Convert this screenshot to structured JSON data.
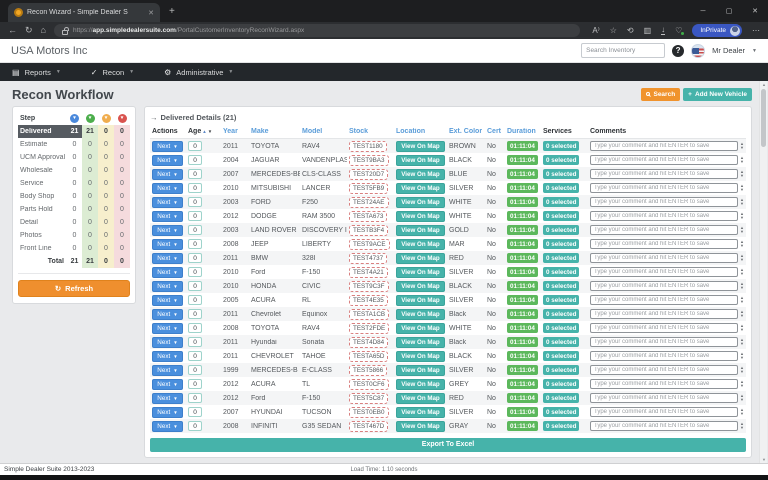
{
  "browser": {
    "tab_title": "Recon Wizard - Simple Dealer S",
    "url_prefix": "https://",
    "url_host": "app.simpledealersuite.com",
    "url_path": "/PortalCustomerInventoryReconWizard.aspx",
    "inprivate_label": "InPrivate"
  },
  "header": {
    "company": "USA Motors Inc",
    "search_placeholder": "Search Inventory",
    "user": "Mr Dealer"
  },
  "nav": {
    "items": [
      {
        "label": "Reports"
      },
      {
        "label": "Recon"
      },
      {
        "label": "Administrative"
      }
    ]
  },
  "page": {
    "title": "Recon Workflow",
    "search_button": "Search",
    "add_vehicle_button": "Add New Vehicle"
  },
  "steps": {
    "header": "Step",
    "status_colors": [
      "#4a89dc",
      "#4cae4c",
      "#f0ad4e",
      "#d9534f"
    ],
    "rows": [
      {
        "label": "Delivered",
        "values": [
          21,
          21,
          0,
          0
        ],
        "selected": true
      },
      {
        "label": "Estimate",
        "values": [
          0,
          0,
          0,
          0
        ],
        "selected": false
      },
      {
        "label": "UCM Approval",
        "values": [
          0,
          0,
          0,
          0
        ],
        "selected": false
      },
      {
        "label": "Wholesale",
        "values": [
          0,
          0,
          0,
          0
        ],
        "selected": false
      },
      {
        "label": "Service",
        "values": [
          0,
          0,
          0,
          0
        ],
        "selected": false
      },
      {
        "label": "Body Shop",
        "values": [
          0,
          0,
          0,
          0
        ],
        "selected": false
      },
      {
        "label": "Parts Hold",
        "values": [
          0,
          0,
          0,
          0
        ],
        "selected": false
      },
      {
        "label": "Detail",
        "values": [
          0,
          0,
          0,
          0
        ],
        "selected": false
      },
      {
        "label": "Photos",
        "values": [
          0,
          0,
          0,
          0
        ],
        "selected": false
      },
      {
        "label": "Front Line",
        "values": [
          0,
          0,
          0,
          0
        ],
        "selected": false
      }
    ],
    "total_label": "Total",
    "total_values": [
      21,
      21,
      0,
      0
    ],
    "refresh_button": "Refresh"
  },
  "details": {
    "title": "Delivered Details (21)",
    "columns": [
      {
        "label": "Actions",
        "link": false,
        "sort": false
      },
      {
        "label": "Age",
        "link": false,
        "sort": true
      },
      {
        "label": "Year",
        "link": true,
        "sort": false
      },
      {
        "label": "Make",
        "link": true,
        "sort": false
      },
      {
        "label": "Model",
        "link": true,
        "sort": false
      },
      {
        "label": "Stock",
        "link": true,
        "sort": false
      },
      {
        "label": "Location",
        "link": true,
        "sort": false
      },
      {
        "label": "Ext. Color",
        "link": true,
        "sort": false
      },
      {
        "label": "Cert",
        "link": true,
        "sort": false
      },
      {
        "label": "Duration",
        "link": true,
        "sort": false
      },
      {
        "label": "Services",
        "link": false,
        "sort": false
      },
      {
        "label": "Comments",
        "link": false,
        "sort": false
      }
    ],
    "next_label": "Next",
    "view_on_map_label": "View On Map",
    "comment_placeholder": "Type your comment and hit ENTER to save",
    "export_button": "Export To Excel",
    "rows": [
      {
        "age": "0",
        "year": "2011",
        "make": "TOYOTA",
        "model": "RAV4",
        "stock": "TEST1180",
        "ext_color": "BROWN",
        "cert": "No",
        "duration": "01:11:04",
        "services": "0 selected"
      },
      {
        "age": "0",
        "year": "2004",
        "make": "JAGUAR",
        "model": "VANDENPLAS",
        "stock": "TEST9BA3",
        "ext_color": "BLACK",
        "cert": "No",
        "duration": "01:11:04",
        "services": "0 selected"
      },
      {
        "age": "0",
        "year": "2007",
        "make": "MERCEDES-BENZ",
        "model": "CLS-CLASS",
        "stock": "TEST20D7",
        "ext_color": "BLUE",
        "cert": "No",
        "duration": "01:11:04",
        "services": "0 selected"
      },
      {
        "age": "0",
        "year": "2010",
        "make": "MITSUBISHI",
        "model": "LANCER",
        "stock": "TEST5FB9",
        "ext_color": "SILVER",
        "cert": "No",
        "duration": "01:11:04",
        "services": "0 selected"
      },
      {
        "age": "0",
        "year": "2003",
        "make": "FORD",
        "model": "F250",
        "stock": "TEST24AE",
        "ext_color": "WHITE",
        "cert": "No",
        "duration": "01:11:04",
        "services": "0 selected"
      },
      {
        "age": "0",
        "year": "2012",
        "make": "DODGE",
        "model": "RAM 3500",
        "stock": "TESTA673",
        "ext_color": "WHITE",
        "cert": "No",
        "duration": "01:11:04",
        "services": "0 selected"
      },
      {
        "age": "0",
        "year": "2003",
        "make": "LAND ROVER",
        "model": "DISCOVERY II",
        "stock": "TESTB3F4",
        "ext_color": "GOLD",
        "cert": "No",
        "duration": "01:11:04",
        "services": "0 selected"
      },
      {
        "age": "0",
        "year": "2008",
        "make": "JEEP",
        "model": "LIBERTY",
        "stock": "TEST9ACE",
        "ext_color": "MAR",
        "cert": "No",
        "duration": "01:11:04",
        "services": "0 selected"
      },
      {
        "age": "0",
        "year": "2011",
        "make": "BMW",
        "model": "328I",
        "stock": "TEST4737",
        "ext_color": "RED",
        "cert": "No",
        "duration": "01:11:04",
        "services": "0 selected"
      },
      {
        "age": "0",
        "year": "2010",
        "make": "Ford",
        "model": "F-150",
        "stock": "TEST4A21",
        "ext_color": "SILVER",
        "cert": "No",
        "duration": "01:11:04",
        "services": "0 selected"
      },
      {
        "age": "0",
        "year": "2010",
        "make": "HONDA",
        "model": "CIVIC",
        "stock": "TEST9C3F",
        "ext_color": "BLACK",
        "cert": "No",
        "duration": "01:11:04",
        "services": "0 selected"
      },
      {
        "age": "0",
        "year": "2005",
        "make": "ACURA",
        "model": "RL",
        "stock": "TEST4E35",
        "ext_color": "SILVER",
        "cert": "No",
        "duration": "01:11:04",
        "services": "0 selected"
      },
      {
        "age": "0",
        "year": "2011",
        "make": "Chevrolet",
        "model": "Equinox",
        "stock": "TESTA1CB",
        "ext_color": "Black",
        "cert": "No",
        "duration": "01:11:04",
        "services": "0 selected"
      },
      {
        "age": "0",
        "year": "2008",
        "make": "TOYOTA",
        "model": "RAV4",
        "stock": "TEST2FDE",
        "ext_color": "WHITE",
        "cert": "No",
        "duration": "01:11:04",
        "services": "0 selected"
      },
      {
        "age": "0",
        "year": "2011",
        "make": "Hyundai",
        "model": "Sonata",
        "stock": "TEST4D84",
        "ext_color": "Black",
        "cert": "No",
        "duration": "01:11:04",
        "services": "0 selected"
      },
      {
        "age": "0",
        "year": "2011",
        "make": "CHEVROLET",
        "model": "TAHOE",
        "stock": "TESTA65D",
        "ext_color": "BLACK",
        "cert": "No",
        "duration": "01:11:04",
        "services": "0 selected"
      },
      {
        "age": "0",
        "year": "1999",
        "make": "MERCEDES-B",
        "model": "E-CLASS",
        "stock": "TEST5866",
        "ext_color": "SILVER",
        "cert": "No",
        "duration": "01:11:04",
        "services": "0 selected"
      },
      {
        "age": "0",
        "year": "2012",
        "make": "ACURA",
        "model": "TL",
        "stock": "TEST0CF6",
        "ext_color": "GREY",
        "cert": "No",
        "duration": "01:11:04",
        "services": "0 selected"
      },
      {
        "age": "0",
        "year": "2012",
        "make": "Ford",
        "model": "F-150",
        "stock": "TEST5C87",
        "ext_color": "RED",
        "cert": "No",
        "duration": "01:11:04",
        "services": "0 selected"
      },
      {
        "age": "0",
        "year": "2007",
        "make": "HYUNDAI",
        "model": "TUCSON",
        "stock": "TEST0EB0",
        "ext_color": "SILVER",
        "cert": "No",
        "duration": "01:11:04",
        "services": "0 selected"
      },
      {
        "age": "0",
        "year": "2008",
        "make": "INFINITI",
        "model": "G35 SEDAN",
        "stock": "TEST467D",
        "ext_color": "GRAY",
        "cert": "No",
        "duration": "01:11:04",
        "services": "0 selected"
      }
    ]
  },
  "footer": {
    "left": "Simple Dealer Suite 2013-2023",
    "load_time": "Load Time: 1.10 seconds"
  }
}
